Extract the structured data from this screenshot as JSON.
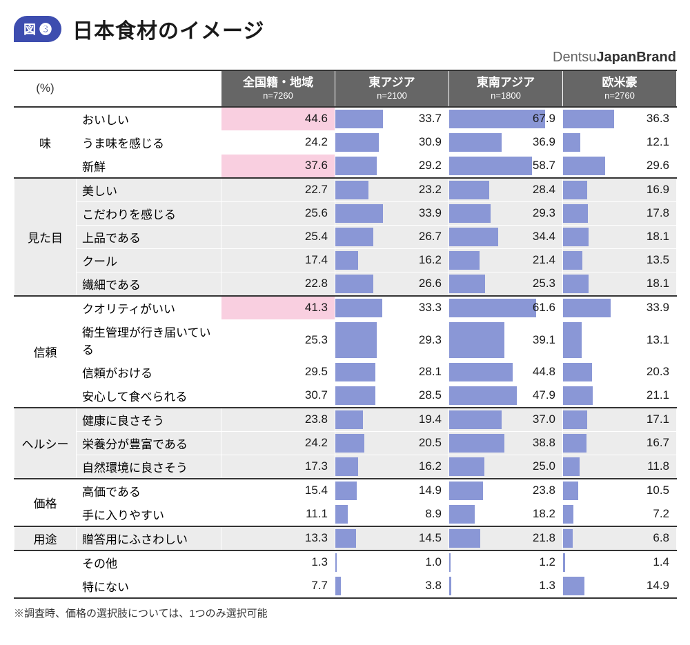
{
  "figure_badge": "図 ❸",
  "title": "日本食材のイメージ",
  "brand_light": "Dentsu",
  "brand_bold": "JapanBrand",
  "percent_label": "(%)",
  "footnote": "※調査時、価格の選択肢については、1つのみ選択可能",
  "colors": {
    "badge_bg": "#3d4daf",
    "header_bg": "#666666",
    "header_fg": "#ffffff",
    "bar": "#8a97d6",
    "highlight_bg": "#f9cfe0",
    "row_white": "#ffffff",
    "row_grey": "#ececec",
    "cat_white": "#ffffff",
    "cat_grey": "#ececec",
    "border": "#333333"
  },
  "bar_max": 80,
  "regions": [
    {
      "key": "all",
      "title": "全国籍・地域",
      "sub": "n=7260",
      "has_bar": false
    },
    {
      "key": "ea",
      "title": "東アジア",
      "sub": "n=2100",
      "has_bar": true
    },
    {
      "key": "sea",
      "title": "東南アジア",
      "sub": "n=1800",
      "has_bar": true
    },
    {
      "key": "west",
      "title": "欧米豪",
      "sub": "n=2760",
      "has_bar": true
    }
  ],
  "groups": [
    {
      "category": "味",
      "shade": "white",
      "rows": [
        {
          "item": "おいしい",
          "all": 44.6,
          "ea": 33.7,
          "sea": 67.9,
          "west": 36.3,
          "highlight_all": true
        },
        {
          "item": "うま味を感じる",
          "all": 24.2,
          "ea": 30.9,
          "sea": 36.9,
          "west": 12.1
        },
        {
          "item": "新鮮",
          "all": 37.6,
          "ea": 29.2,
          "sea": 58.7,
          "west": 29.6,
          "highlight_all": true
        }
      ]
    },
    {
      "category": "見た目",
      "shade": "grey",
      "rows": [
        {
          "item": "美しい",
          "all": 22.7,
          "ea": 23.2,
          "sea": 28.4,
          "west": 16.9
        },
        {
          "item": "こだわりを感じる",
          "all": 25.6,
          "ea": 33.9,
          "sea": 29.3,
          "west": 17.8
        },
        {
          "item": "上品である",
          "all": 25.4,
          "ea": 26.7,
          "sea": 34.4,
          "west": 18.1
        },
        {
          "item": "クール",
          "all": 17.4,
          "ea": 16.2,
          "sea": 21.4,
          "west": 13.5
        },
        {
          "item": "繊細である",
          "all": 22.8,
          "ea": 26.6,
          "sea": 25.3,
          "west": 18.1
        }
      ]
    },
    {
      "category": "信頼",
      "shade": "white",
      "rows": [
        {
          "item": "クオリティがいい",
          "all": 41.3,
          "ea": 33.3,
          "sea": 61.6,
          "west": 33.9,
          "highlight_all": true
        },
        {
          "item": "衛生管理が行き届いている",
          "all": 25.3,
          "ea": 29.3,
          "sea": 39.1,
          "west": 13.1
        },
        {
          "item": "信頼がおける",
          "all": 29.5,
          "ea": 28.1,
          "sea": 44.8,
          "west": 20.3
        },
        {
          "item": "安心して食べられる",
          "all": 30.7,
          "ea": 28.5,
          "sea": 47.9,
          "west": 21.1
        }
      ]
    },
    {
      "category": "ヘルシー",
      "shade": "grey",
      "rows": [
        {
          "item": "健康に良さそう",
          "all": 23.8,
          "ea": 19.4,
          "sea": 37.0,
          "west": 17.1
        },
        {
          "item": "栄養分が豊富である",
          "all": 24.2,
          "ea": 20.5,
          "sea": 38.8,
          "west": 16.7
        },
        {
          "item": "自然環境に良さそう",
          "all": 17.3,
          "ea": 16.2,
          "sea": 25.0,
          "west": 11.8
        }
      ]
    },
    {
      "category": "価格",
      "shade": "white",
      "rows": [
        {
          "item": "高価である",
          "all": 15.4,
          "ea": 14.9,
          "sea": 23.8,
          "west": 10.5
        },
        {
          "item": "手に入りやすい",
          "all": 11.1,
          "ea": 8.9,
          "sea": 18.2,
          "west": 7.2
        }
      ]
    },
    {
      "category": "用途",
      "shade": "grey",
      "rows": [
        {
          "item": "贈答用にふさわしい",
          "all": 13.3,
          "ea": 14.5,
          "sea": 21.8,
          "west": 6.8
        }
      ]
    },
    {
      "category": "",
      "shade": "white",
      "rows": [
        {
          "item": "その他",
          "all": 1.3,
          "ea": 1.0,
          "sea": 1.2,
          "west": 1.4
        },
        {
          "item": "特にない",
          "all": 7.7,
          "ea": 3.8,
          "sea": 1.3,
          "west": 14.9
        }
      ]
    }
  ]
}
